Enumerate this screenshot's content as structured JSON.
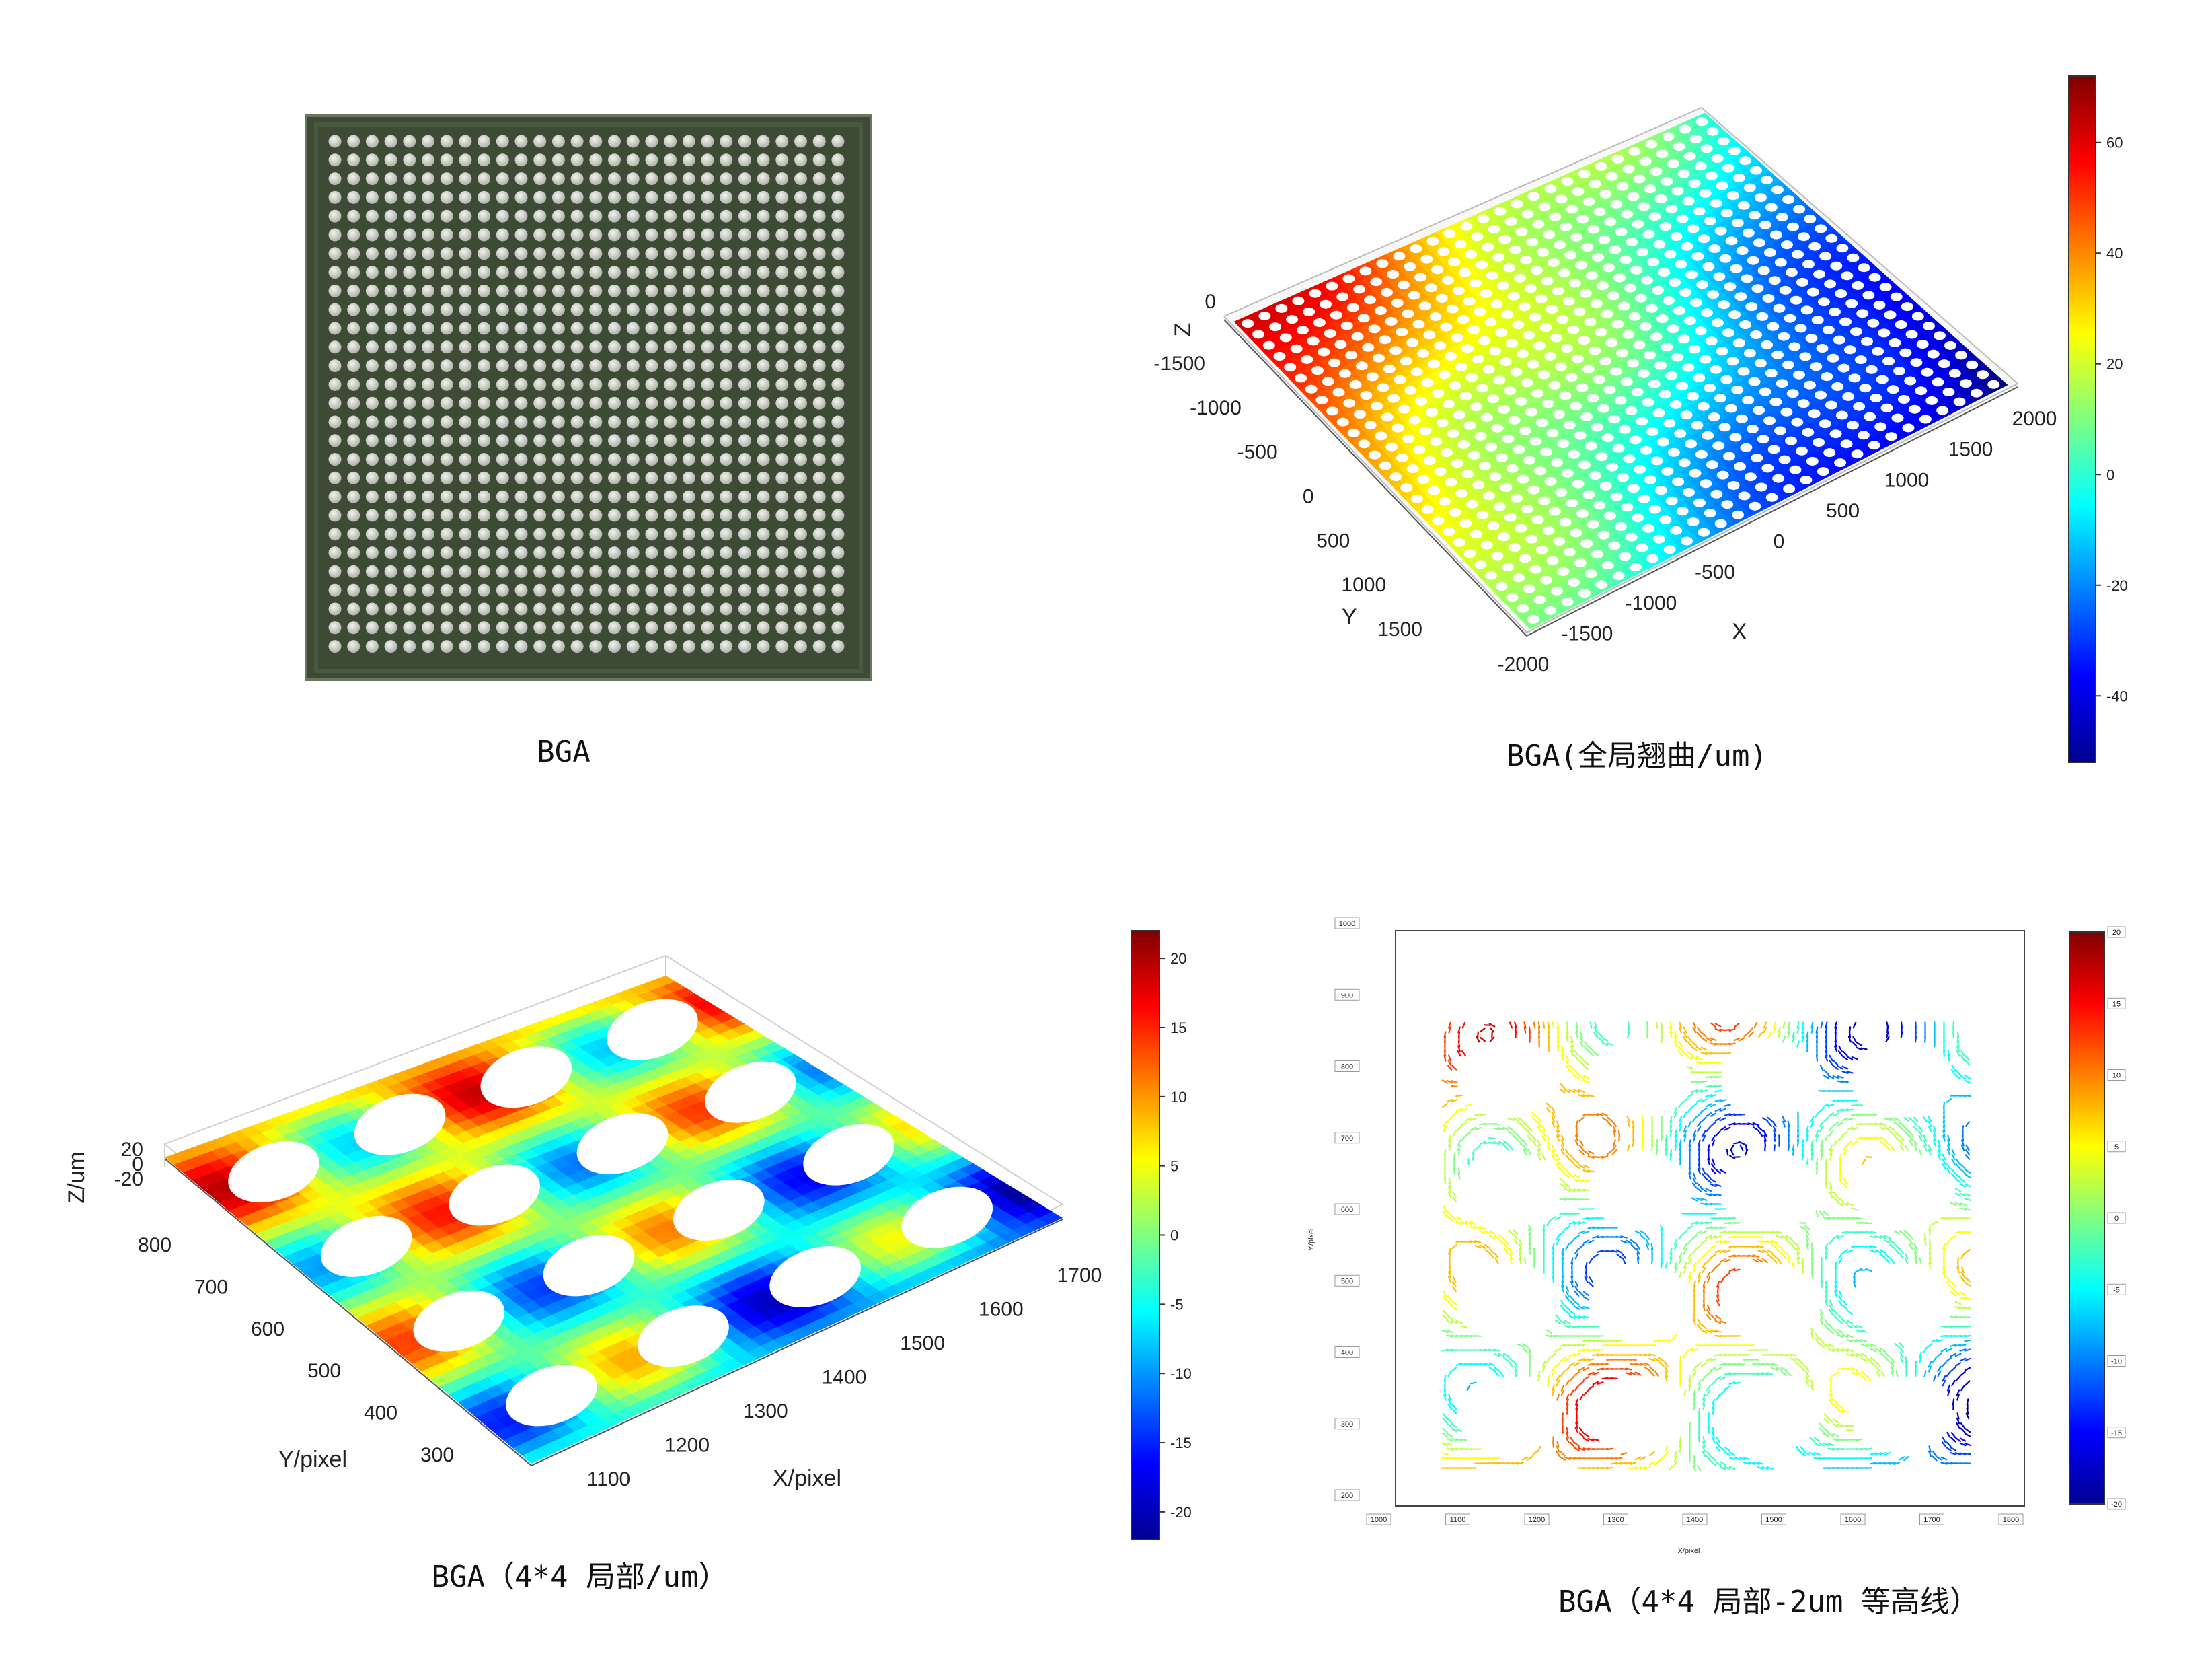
{
  "colors": {
    "board_green": "#3d4a35",
    "board_edge": "#6a7560",
    "ball": "#d8dcd4",
    "jet": [
      "#00008f",
      "#0000ff",
      "#0080ff",
      "#00ffff",
      "#80ff80",
      "#ffff00",
      "#ff8000",
      "#ff0000",
      "#800000"
    ]
  },
  "chart_data": [
    {
      "type": "photo",
      "caption": "BGA",
      "grid": {
        "rows": 28,
        "cols": 28
      }
    },
    {
      "type": "surface3d",
      "caption": "BGA(全局翘曲/um)",
      "xlabel": "X",
      "ylabel": "Y",
      "zlabel": "Z",
      "x_ticks": [
        "-2000",
        "-1500",
        "-1000",
        "-500",
        "0",
        "500",
        "1000",
        "1500",
        "2000"
      ],
      "y_ticks": [
        "-1500",
        "-1000",
        "-500",
        "0",
        "500",
        "1000",
        "1500"
      ],
      "z_ticks": [
        "0"
      ],
      "colorbar": {
        "ticks": [
          "60",
          "40",
          "20",
          "0",
          "-20",
          "-40"
        ],
        "range": [
          -52,
          72
        ]
      },
      "grid": {
        "rows": 28,
        "cols": 28
      }
    },
    {
      "type": "surface3d",
      "caption": "BGA（4*4 局部/um）",
      "xlabel": "X/pixel",
      "ylabel": "Y/pixel",
      "zlabel": "Z/um",
      "x_ticks": [
        "1100",
        "1200",
        "1300",
        "1400",
        "1500",
        "1600",
        "1700"
      ],
      "y_ticks": [
        "300",
        "400",
        "500",
        "600",
        "700",
        "800"
      ],
      "z_ticks": [
        "20",
        "0",
        "-20"
      ],
      "colorbar": {
        "ticks": [
          "20",
          "15",
          "10",
          "5",
          "0",
          "-5",
          "-10",
          "-15",
          "-20"
        ],
        "range": [
          -22,
          22
        ]
      },
      "grid": {
        "rows": 4,
        "cols": 4
      }
    },
    {
      "type": "contour",
      "caption": "BGA（4*4 局部-2um 等高线）",
      "xlabel": "X/pixel",
      "ylabel": "Y/pixel",
      "x_ticks": [
        "1000",
        "1100",
        "1200",
        "1300",
        "1400",
        "1500",
        "1600",
        "1700",
        "1800"
      ],
      "y_ticks": [
        "1000",
        "900",
        "800",
        "700",
        "600",
        "500",
        "400",
        "300",
        "200"
      ],
      "colorbar": {
        "ticks": [
          "20",
          "15",
          "10",
          "5",
          "0",
          "-5",
          "-10",
          "-15",
          "-20"
        ],
        "range": [
          -20,
          20
        ]
      },
      "grid": {
        "rows": 4,
        "cols": 4
      }
    }
  ]
}
